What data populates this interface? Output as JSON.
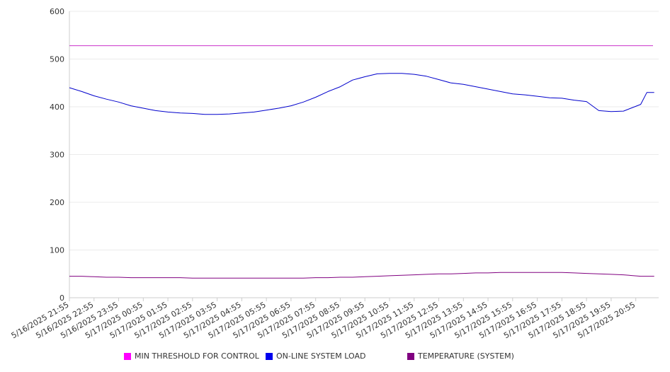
{
  "chart_data": {
    "type": "line",
    "title": "",
    "xlabel": "",
    "ylabel": "",
    "ylim": [
      0,
      600
    ],
    "yticks": [
      0,
      100,
      200,
      300,
      400,
      500,
      600
    ],
    "x_tick_labels": [
      "5/16/2025 21:55",
      "5/16/2025 22:55",
      "5/16/2025 23:55",
      "5/17/2025 00:55",
      "5/17/2025 01:55",
      "5/17/2025 02:55",
      "5/17/2025 03:55",
      "5/17/2025 04:55",
      "5/17/2025 05:55",
      "5/17/2025 06:55",
      "5/17/2025 07:55",
      "5/17/2025 08:55",
      "5/17/2025 09:55",
      "5/17/2025 10:55",
      "5/17/2025 11:55",
      "5/17/2025 12:55",
      "5/17/2025 13:55",
      "5/17/2025 14:55",
      "5/17/2025 15:55",
      "5/17/2025 16:55",
      "5/17/2025 17:55",
      "5/17/2025 18:55",
      "5/17/2025 19:55",
      "5/17/2025 20:55"
    ],
    "x_hours": [
      0,
      0.5,
      1,
      1.5,
      2,
      2.5,
      3,
      3.5,
      4,
      4.5,
      5,
      5.5,
      6,
      6.5,
      7,
      7.5,
      8,
      8.5,
      9,
      9.5,
      10,
      10.5,
      11,
      11.5,
      12,
      12.5,
      13,
      13.5,
      14,
      14.5,
      15,
      15.5,
      16,
      16.5,
      17,
      17.5,
      18,
      18.5,
      19,
      19.5,
      20,
      20.5,
      21,
      21.5,
      22,
      22.5,
      23,
      23.4,
      23.7
    ],
    "grid": true,
    "legend_position": "bottom",
    "series": [
      {
        "name": "MIN THRESHOLD FOR CONTROL",
        "color": "#ff00ff",
        "line_color": "#cc33cc",
        "values": [
          528,
          528,
          528,
          528,
          528,
          528,
          528,
          528,
          528,
          528,
          528,
          528,
          528,
          528,
          528,
          528,
          528,
          528,
          528,
          528,
          528,
          528,
          528,
          528,
          528,
          528,
          528,
          528,
          528,
          528,
          528,
          528,
          528,
          528,
          528,
          528,
          528,
          528,
          528,
          528,
          528,
          528,
          528,
          528,
          528,
          528,
          528,
          528,
          528
        ]
      },
      {
        "name": "ON-LINE SYSTEM LOAD",
        "color": "#0000ee",
        "line_color": "#0000cc",
        "values": [
          440,
          432,
          423,
          416,
          410,
          402,
          397,
          392,
          389,
          387,
          386,
          384,
          384,
          385,
          387,
          389,
          393,
          397,
          402,
          410,
          420,
          432,
          442,
          456,
          463,
          469,
          470,
          470,
          468,
          464,
          457,
          450,
          447,
          442,
          437,
          432,
          427,
          425,
          422,
          419,
          418,
          414,
          411,
          392,
          390,
          391,
          393,
          395,
          398
        ]
      },
      {
        "name": "TEMPERATURE (SYSTEM)",
        "color": "#800080",
        "line_color": "#800080",
        "values": [
          45,
          45,
          44,
          43,
          43,
          42,
          42,
          42,
          42,
          42,
          41,
          41,
          41,
          41,
          41,
          41,
          41,
          41,
          41,
          41,
          42,
          42,
          43,
          43,
          44,
          45,
          46,
          47,
          48,
          49,
          50,
          50,
          51,
          52,
          52,
          53,
          53,
          53,
          53,
          53,
          53,
          52,
          51,
          50,
          49,
          48,
          47,
          46,
          46
        ]
      }
    ],
    "tail_values": {
      "ON-LINE SYSTEM LOAD": [
        405,
        430,
        430
      ],
      "TEMPERATURE (SYSTEM)": [
        45,
        45,
        45
      ]
    }
  }
}
